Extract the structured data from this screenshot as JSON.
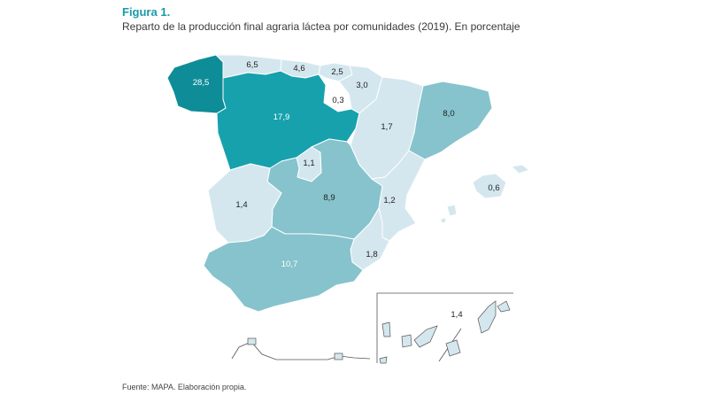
{
  "figure": {
    "label": "Figura 1.",
    "title": "Reparto de la producción final agraria láctea por comunidades (2019). En porcentaje",
    "source": "Fuente: MAPA. Elaboración propia."
  },
  "colors": {
    "very_high": "#0e8c97",
    "high": "#17a1ad",
    "medium": "#86c3cd",
    "low": "#d4e7ee"
  },
  "regions": [
    {
      "id": "galicia",
      "value": "28,5"
    },
    {
      "id": "asturias",
      "value": "6,5"
    },
    {
      "id": "cantabria",
      "value": "4,6"
    },
    {
      "id": "pais-vasco",
      "value": "2,5"
    },
    {
      "id": "navarra",
      "value": "3,0"
    },
    {
      "id": "la-rioja",
      "value": "0,3"
    },
    {
      "id": "castilla-y-leon",
      "value": "17,9"
    },
    {
      "id": "aragon",
      "value": "1,7"
    },
    {
      "id": "cataluna",
      "value": "8,0"
    },
    {
      "id": "madrid",
      "value": "1,1"
    },
    {
      "id": "castilla-la-mancha",
      "value": "8,9"
    },
    {
      "id": "extremadura",
      "value": "1,4"
    },
    {
      "id": "comunidad-valenciana",
      "value": "1,2"
    },
    {
      "id": "baleares",
      "value": "0,6"
    },
    {
      "id": "murcia",
      "value": "1,8"
    },
    {
      "id": "andalucia",
      "value": "10,7"
    },
    {
      "id": "canarias",
      "value": "1,4"
    }
  ]
}
